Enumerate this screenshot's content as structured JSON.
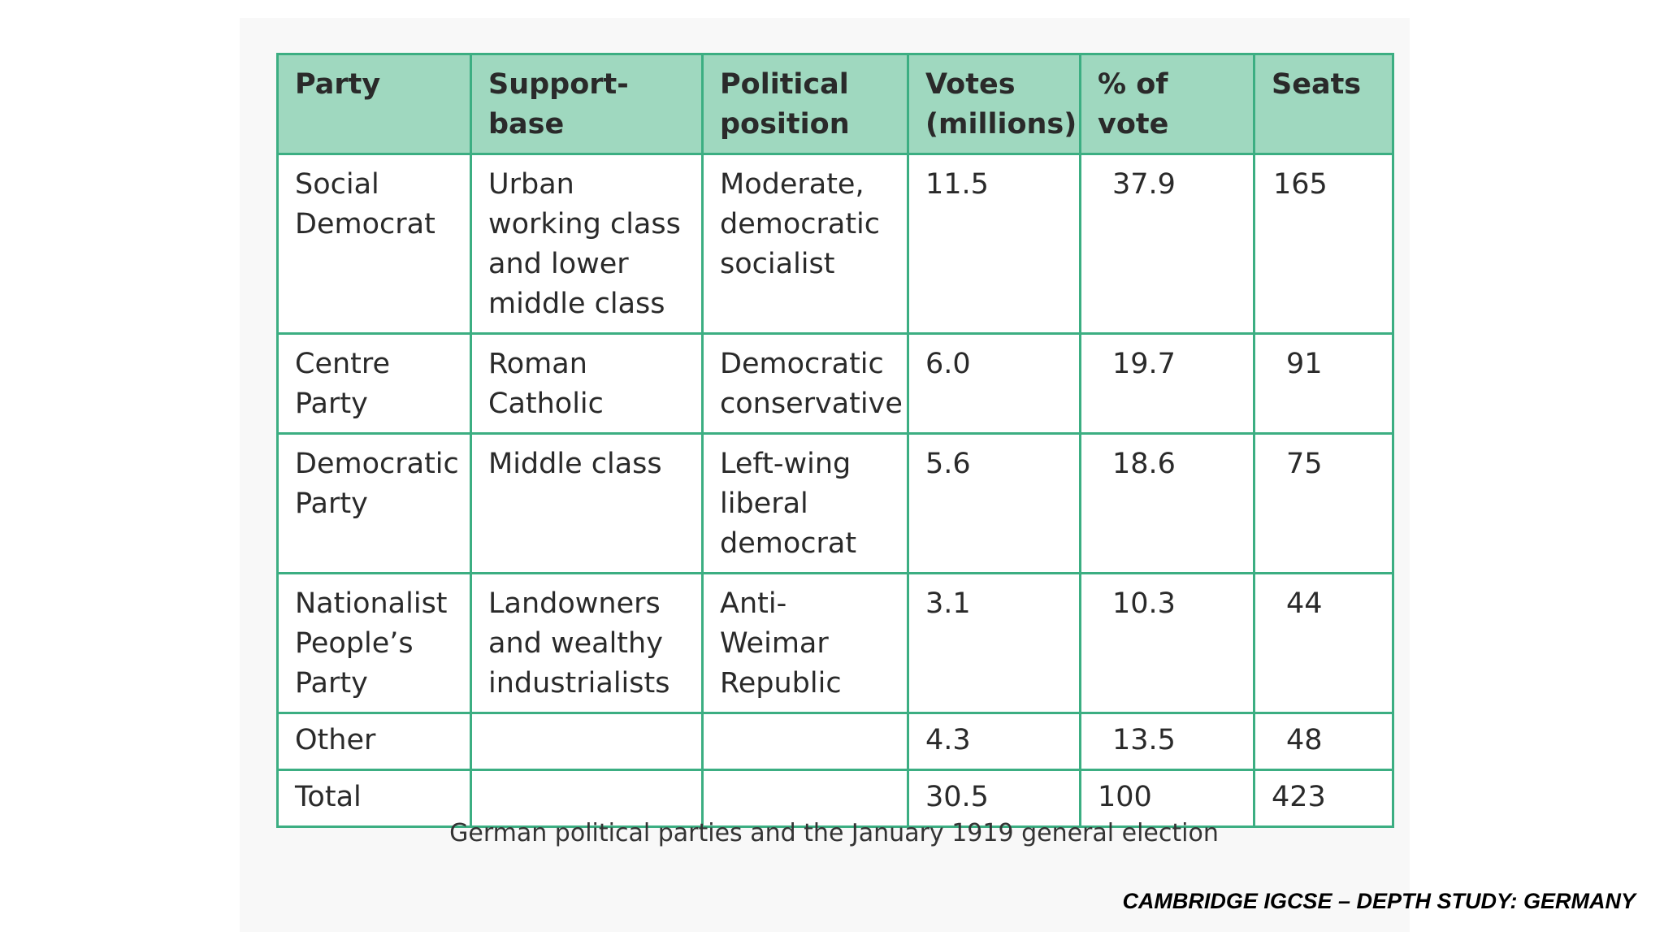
{
  "table": {
    "headers": [
      "Party",
      "Support-base",
      "Political position",
      "Votes (millions)",
      "% of vote",
      "Seats"
    ],
    "header_lines": [
      [
        "Party"
      ],
      [
        "Support-base"
      ],
      [
        "Political",
        "position"
      ],
      [
        "Votes",
        "(millions)"
      ],
      [
        "% of vote"
      ],
      [
        "Seats"
      ]
    ],
    "rows": [
      {
        "party": [
          "Social",
          "Democrat"
        ],
        "support_base": [
          "Urban",
          "working class",
          "and lower",
          "middle class"
        ],
        "political_position": [
          "Moderate,",
          "democratic",
          "socialist"
        ],
        "votes": "11.5",
        "percent": "37.9",
        "seats": "165"
      },
      {
        "party": [
          "Centre Party"
        ],
        "support_base": [
          "Roman",
          "Catholic"
        ],
        "political_position": [
          "Democratic",
          "conservative"
        ],
        "votes": "6.0",
        "percent": "19.7",
        "seats": "91"
      },
      {
        "party": [
          "Democratic",
          "Party"
        ],
        "support_base": [
          "Middle class"
        ],
        "political_position": [
          "Left-wing",
          "liberal",
          "democrat"
        ],
        "votes": "5.6",
        "percent": "18.6",
        "seats": "75"
      },
      {
        "party": [
          "Nationalist",
          "People’s",
          "Party"
        ],
        "support_base": [
          "Landowners",
          "and wealthy",
          "industrialists"
        ],
        "political_position": [
          "Anti-Weimar",
          "Republic"
        ],
        "votes": "3.1",
        "percent": "10.3",
        "seats": "44"
      },
      {
        "party": [
          "Other"
        ],
        "support_base": [],
        "political_position": [],
        "votes": "4.3",
        "percent": "13.5",
        "seats": "48"
      },
      {
        "party": [
          "Total"
        ],
        "support_base": [],
        "political_position": [],
        "votes": "30.5",
        "percent": "100",
        "seats": "423"
      }
    ]
  },
  "caption": "German political parties and the January 1919 general election",
  "footer": "CAMBRIDGE IGCSE – DEPTH STUDY: GERMANY",
  "colors": {
    "border": "#3cae82",
    "header_fill": "#9fd8bf"
  }
}
